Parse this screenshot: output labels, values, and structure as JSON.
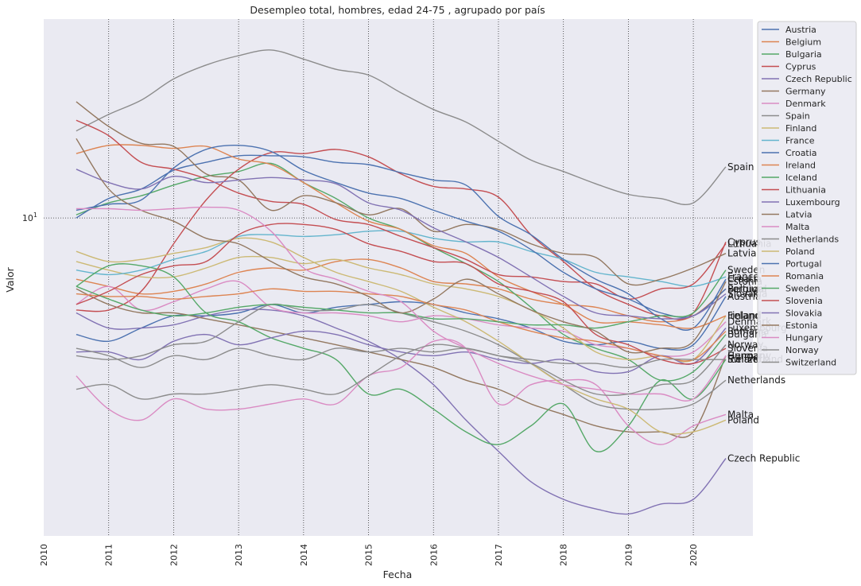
{
  "chart_data": {
    "type": "line",
    "title": "Desempleo total, hombres, edad 24-75 , agrupado por país",
    "xlabel": "Fecha",
    "ylabel": "Valor",
    "yscale": "log",
    "ytick_labels": [
      "10^1"
    ],
    "xlim": [
      "2010-01",
      "2020-12"
    ],
    "ylim": [
      1.35,
      35
    ],
    "x_ticks": [
      "2010",
      "2011",
      "2012",
      "2013",
      "2014",
      "2015",
      "2016",
      "2017",
      "2018",
      "2019",
      "2020"
    ],
    "grid": true,
    "legend_position": "upper right, outside",
    "x": [
      "2010-07",
      "2011-01",
      "2011-07",
      "2012-01",
      "2012-07",
      "2013-01",
      "2013-07",
      "2014-01",
      "2014-07",
      "2015-01",
      "2015-07",
      "2016-01",
      "2016-07",
      "2017-01",
      "2017-07",
      "2018-01",
      "2018-07",
      "2019-01",
      "2019-07",
      "2020-01",
      "2020-07"
    ],
    "series": [
      {
        "name": "Austria",
        "color": "#4c72b0",
        "values": [
          4.8,
          4.6,
          5.0,
          5.4,
          5.4,
          5.5,
          5.8,
          5.5,
          5.7,
          5.8,
          5.9,
          5.8,
          5.5,
          5.3,
          5.0,
          4.6,
          4.5,
          4.6,
          4.4,
          4.5,
          6.1
        ]
      },
      {
        "name": "Belgium",
        "color": "#dd8452",
        "values": [
          6.8,
          6.5,
          6.2,
          6.3,
          6.6,
          7.1,
          7.3,
          7.2,
          7.6,
          7.7,
          7.3,
          6.7,
          6.6,
          6.4,
          6.0,
          5.8,
          5.7,
          5.4,
          5.2,
          5.4,
          6.4
        ]
      },
      {
        "name": "Bulgaria",
        "color": "#55a868",
        "values": [
          10.2,
          11.0,
          11.5,
          12.3,
          13.0,
          13.4,
          14.1,
          12.5,
          11.3,
          10.0,
          9.3,
          8.3,
          7.5,
          6.7,
          5.7,
          4.8,
          4.4,
          4.1,
          3.6,
          3.8,
          4.8
        ]
      },
      {
        "name": "Cyprus",
        "color": "#c44e52",
        "values": [
          5.6,
          5.6,
          6.3,
          8.5,
          11.2,
          13.6,
          15.1,
          15.0,
          15.4,
          14.7,
          13.2,
          12.2,
          12.0,
          11.4,
          9.0,
          7.6,
          6.4,
          5.8,
          5.4,
          5.5,
          8.6
        ]
      },
      {
        "name": "Czech Republic",
        "color": "#8172b3",
        "values": [
          5.5,
          5.0,
          5.0,
          5.1,
          5.4,
          5.6,
          5.6,
          5.4,
          5.0,
          4.6,
          4.1,
          3.5,
          2.8,
          2.3,
          1.9,
          1.7,
          1.6,
          1.55,
          1.65,
          1.7,
          2.2
        ]
      },
      {
        "name": "Germany",
        "color": "#937860",
        "values": [
          6.4,
          5.8,
          5.5,
          5.5,
          5.3,
          5.1,
          4.9,
          4.7,
          4.5,
          4.3,
          4.1,
          3.9,
          3.6,
          3.4,
          3.1,
          2.9,
          2.7,
          2.6,
          2.6,
          2.6,
          4.2
        ]
      },
      {
        "name": "Denmark",
        "color": "#da8bc3",
        "values": [
          5.8,
          6.5,
          5.6,
          5.9,
          6.4,
          6.7,
          5.7,
          5.5,
          5.5,
          5.4,
          5.2,
          5.4,
          5.3,
          5.1,
          5.0,
          4.9,
          4.5,
          4.4,
          4.2,
          4.3,
          5.2
        ]
      },
      {
        "name": "Spain",
        "color": "#8c8c8c",
        "values": [
          17.3,
          19.2,
          21.0,
          24.0,
          26.2,
          27.8,
          28.8,
          27.2,
          25.5,
          24.6,
          22.0,
          19.8,
          18.3,
          16.2,
          14.4,
          13.4,
          12.4,
          11.6,
          11.3,
          11.0,
          13.8
        ]
      },
      {
        "name": "Finland",
        "color": "#ccb974",
        "values": [
          7.6,
          7.2,
          6.9,
          6.9,
          7.3,
          7.8,
          7.8,
          7.5,
          7.7,
          7.3,
          7.0,
          6.6,
          6.4,
          6.1,
          5.6,
          5.0,
          4.3,
          4.1,
          4.2,
          4.1,
          5.4
        ]
      },
      {
        "name": "France",
        "color": "#64b5cd",
        "values": [
          7.2,
          7.0,
          7.2,
          7.7,
          8.1,
          8.9,
          9.0,
          8.9,
          9.0,
          9.2,
          9.2,
          8.8,
          8.6,
          8.6,
          8.1,
          7.7,
          7.1,
          6.9,
          6.7,
          6.5,
          6.9
        ]
      },
      {
        "name": "Croatia",
        "color": "#4c72b0",
        "values": [
          10.0,
          11.3,
          12.0,
          13.5,
          14.2,
          14.8,
          14.8,
          14.7,
          14.2,
          14.0,
          13.3,
          12.7,
          12.3,
          10.1,
          9.0,
          7.7,
          6.8,
          6.2,
          5.3,
          5.0,
          6.8
        ]
      },
      {
        "name": "Ireland",
        "color": "#dd8452",
        "values": [
          15.0,
          15.8,
          15.8,
          15.5,
          15.7,
          14.5,
          14.0,
          12.5,
          11.0,
          9.8,
          9.3,
          8.4,
          8.0,
          6.9,
          6.3,
          5.8,
          5.2,
          5.2,
          5.1,
          5.0,
          5.4
        ]
      },
      {
        "name": "Iceland",
        "color": "#55a868",
        "values": [
          6.5,
          7.4,
          7.4,
          6.9,
          5.5,
          5.2,
          4.7,
          4.4,
          4.1,
          3.3,
          3.4,
          3.0,
          2.6,
          2.4,
          2.7,
          3.1,
          2.3,
          2.7,
          3.6,
          3.2,
          4.1
        ]
      },
      {
        "name": "Lithuania",
        "color": "#c44e52",
        "values": [
          18.5,
          16.8,
          14.2,
          13.6,
          12.8,
          11.7,
          11.1,
          10.9,
          9.9,
          9.6,
          8.9,
          8.3,
          7.7,
          7.0,
          6.9,
          6.7,
          6.6,
          6.0,
          6.4,
          6.6,
          8.5
        ]
      },
      {
        "name": "Luxembourg",
        "color": "#8172b3",
        "values": [
          4.3,
          4.3,
          4.1,
          4.6,
          4.8,
          4.5,
          4.7,
          4.9,
          4.8,
          4.5,
          4.3,
          4.2,
          4.3,
          4.1,
          4.0,
          4.1,
          3.8,
          3.8,
          4.2,
          4.0,
          5.0
        ]
      },
      {
        "name": "Latvia",
        "color": "#937860",
        "values": [
          20.8,
          17.8,
          16.0,
          15.7,
          13.2,
          12.7,
          10.5,
          11.5,
          11.0,
          10.2,
          10.6,
          9.2,
          9.6,
          9.3,
          8.5,
          8.0,
          7.8,
          6.6,
          6.8,
          7.3,
          8.0
        ]
      },
      {
        "name": "Malta",
        "color": "#da8bc3",
        "values": [
          3.7,
          3.0,
          2.8,
          3.2,
          3.0,
          3.0,
          3.1,
          3.2,
          3.1,
          3.7,
          3.9,
          4.6,
          4.4,
          3.1,
          3.5,
          3.6,
          3.5,
          2.7,
          2.4,
          2.7,
          2.9
        ]
      },
      {
        "name": "Netherlands",
        "color": "#8c8c8c",
        "values": [
          4.2,
          4.1,
          4.2,
          4.5,
          4.6,
          5.2,
          5.8,
          5.6,
          5.6,
          5.8,
          5.5,
          5.2,
          4.9,
          4.5,
          4.0,
          3.5,
          3.1,
          3.0,
          3.0,
          3.1,
          3.6
        ]
      },
      {
        "name": "Poland",
        "color": "#ccb974",
        "values": [
          8.1,
          7.6,
          7.7,
          8.0,
          8.3,
          8.8,
          8.6,
          7.8,
          7.1,
          6.7,
          6.3,
          5.7,
          5.2,
          4.6,
          4.0,
          3.5,
          3.2,
          3.0,
          2.6,
          2.6,
          2.8
        ]
      },
      {
        "name": "Portugal",
        "color": "#4c72b0",
        "values": [
          10.5,
          10.9,
          11.2,
          13.7,
          15.4,
          15.8,
          15.2,
          13.5,
          12.5,
          11.7,
          11.3,
          10.5,
          9.8,
          9.2,
          8.2,
          7.1,
          6.4,
          6.0,
          5.5,
          5.4,
          6.4
        ]
      },
      {
        "name": "Romania",
        "color": "#dd8452",
        "values": [
          6.2,
          6.1,
          6.1,
          6.0,
          6.1,
          6.2,
          6.4,
          6.3,
          6.3,
          6.2,
          6.1,
          5.8,
          5.6,
          5.2,
          4.9,
          4.7,
          4.6,
          4.4,
          4.2,
          4.1,
          4.9
        ]
      },
      {
        "name": "Sweden",
        "color": "#55a868",
        "values": [
          6.5,
          6.0,
          5.6,
          5.4,
          5.5,
          5.7,
          5.8,
          5.7,
          5.6,
          5.5,
          5.5,
          5.3,
          5.3,
          5.2,
          5.1,
          5.1,
          5.0,
          5.2,
          5.4,
          5.5,
          7.2
        ]
      },
      {
        "name": "Slovenia",
        "color": "#c44e52",
        "values": [
          5.8,
          6.3,
          7.0,
          7.4,
          7.6,
          9.0,
          9.6,
          9.6,
          9.3,
          8.5,
          8.1,
          7.6,
          7.5,
          6.6,
          6.3,
          5.9,
          4.8,
          4.5,
          4.1,
          4.0,
          4.4
        ]
      },
      {
        "name": "Slovakia",
        "color": "#8172b3",
        "values": [
          13.6,
          12.5,
          12.0,
          13.0,
          12.5,
          12.7,
          12.9,
          12.7,
          12.4,
          11.0,
          10.5,
          9.4,
          8.6,
          7.8,
          6.9,
          6.1,
          5.5,
          5.4,
          5.3,
          5.4,
          6.2
        ]
      },
      {
        "name": "Estonia",
        "color": "#937860",
        "values": [
          16.5,
          12.0,
          10.5,
          9.8,
          8.8,
          8.5,
          7.6,
          6.9,
          6.6,
          6.1,
          5.5,
          6.0,
          6.8,
          6.2,
          5.6,
          5.2,
          4.9,
          4.3,
          4.4,
          4.6,
          6.7
        ]
      },
      {
        "name": "Hungary",
        "color": "#da8bc3",
        "values": [
          10.6,
          10.6,
          10.5,
          10.6,
          10.7,
          10.5,
          9.2,
          7.3,
          6.8,
          6.3,
          5.9,
          4.9,
          4.4,
          4.0,
          3.7,
          3.5,
          3.4,
          3.3,
          3.3,
          3.2,
          4.2
        ]
      },
      {
        "name": "Norway",
        "color": "#8c8c8c",
        "values": [
          3.4,
          3.5,
          3.2,
          3.3,
          3.3,
          3.4,
          3.5,
          3.4,
          3.3,
          3.7,
          4.2,
          4.5,
          4.4,
          4.2,
          4.0,
          3.6,
          3.3,
          3.3,
          3.5,
          3.6,
          4.5
        ]
      },
      {
        "name": "Switzerland",
        "color": "#8c8c8c",
        "values": [
          4.4,
          4.2,
          3.9,
          4.2,
          4.1,
          4.4,
          4.2,
          4.1,
          4.4,
          4.3,
          4.4,
          4.3,
          4.4,
          4.2,
          4.1,
          4.0,
          4.0,
          3.9,
          4.1,
          4.1,
          4.1
        ]
      }
    ],
    "end_labels": [
      "Spain",
      "Lithuania",
      "Cyprus",
      "Latvia",
      "Sweden",
      "Croatia",
      "Estonia",
      "Luxembourg",
      "Finland",
      "Austria",
      "Portugal",
      "Slovakia",
      "France",
      "Belgium",
      "Romania",
      "Bulgaria",
      "Ireland",
      "Denmark",
      "Germany",
      "Hungary",
      "Norway",
      "Slovenia",
      "Switzerland",
      "Iceland",
      "Netherlands",
      "Malta",
      "Poland",
      "Czech Republic"
    ]
  }
}
